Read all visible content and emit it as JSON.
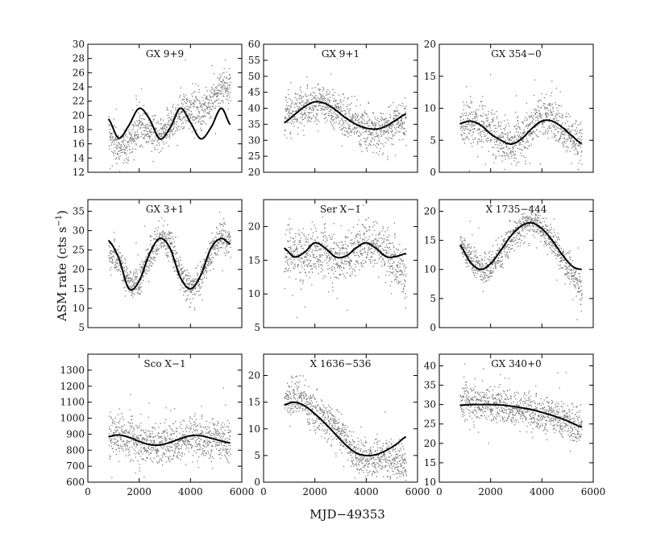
{
  "chart_data": {
    "type": "scatter",
    "layout": "3x3 grid of scatter plots with sinusoidal fit curves",
    "xlabel": "MJD−49353",
    "ylabel": "ASM rate (cts  s",
    "ylabel_superscript": "−1",
    "ylabel_close": ")",
    "xlim": [
      0,
      6000
    ],
    "xticks": [
      "0",
      "2000",
      "4000",
      "6000"
    ],
    "xtick_values": [
      0,
      2000,
      4000,
      6000
    ],
    "data_x_range": [
      800,
      5550
    ],
    "panels": [
      {
        "title": "GX 9+9",
        "ylim": [
          12,
          30
        ],
        "yticks": [
          12,
          14,
          16,
          18,
          20,
          22,
          24,
          26,
          28,
          30
        ],
        "fit_curve": {
          "x": [
            800,
            1200,
            1600,
            2000,
            2400,
            2800,
            3200,
            3600,
            4000,
            4400,
            4800,
            5200,
            5550
          ],
          "y": [
            19.5,
            16.8,
            18.6,
            21.0,
            19.5,
            16.7,
            18.2,
            21.0,
            19.0,
            16.7,
            18.3,
            21.0,
            18.7
          ]
        },
        "scatter_trend": {
          "x": [
            800,
            1200,
            1600,
            2000,
            2400,
            2800,
            3200,
            3600,
            4000,
            4400,
            4800,
            5200,
            5550
          ],
          "y": [
            17.5,
            15.5,
            16.5,
            18.5,
            18.0,
            16.8,
            18.8,
            20.5,
            21.0,
            20.8,
            21.8,
            24.5,
            24.0
          ]
        },
        "scatter_spread": 1.6
      },
      {
        "title": "GX 9+1",
        "ylim": [
          20,
          60
        ],
        "yticks": [
          20,
          25,
          30,
          35,
          40,
          45,
          50,
          55,
          60
        ],
        "fit_curve": {
          "x": [
            800,
            1200,
            1600,
            2000,
            2400,
            2800,
            3200,
            3600,
            4000,
            4400,
            4800,
            5200,
            5550
          ],
          "y": [
            35.5,
            38.0,
            40.5,
            42.0,
            41.5,
            39.5,
            37.0,
            35.0,
            33.8,
            33.5,
            34.5,
            36.5,
            38.2
          ]
        },
        "scatter_trend": {
          "x": [
            800,
            1200,
            1600,
            2000,
            2400,
            2800,
            3200,
            3600,
            4000,
            4400,
            4800,
            5200,
            5550
          ],
          "y": [
            38,
            39,
            41,
            42,
            41,
            39,
            37,
            35,
            33.5,
            33,
            34,
            36,
            37
          ]
        },
        "scatter_spread": 4.0
      },
      {
        "title": "GX 354−0",
        "ylim": [
          0,
          20
        ],
        "yticks": [
          0,
          5,
          10,
          15,
          20
        ],
        "fit_curve": {
          "x": [
            800,
            1200,
            1600,
            2000,
            2400,
            2800,
            3200,
            3600,
            4000,
            4400,
            4800,
            5200,
            5550
          ],
          "y": [
            7.6,
            8.0,
            7.4,
            6.0,
            5.0,
            4.4,
            5.2,
            6.8,
            8.0,
            8.0,
            7.0,
            5.6,
            4.5
          ]
        },
        "scatter_trend": {
          "x": [
            800,
            1200,
            1600,
            2000,
            2400,
            2800,
            3200,
            3600,
            4000,
            4400,
            4800,
            5200,
            5550
          ],
          "y": [
            7.5,
            8.0,
            7.5,
            6.5,
            5.0,
            4.5,
            5.5,
            7.5,
            9.0,
            8.5,
            7.0,
            5.5,
            4.0
          ]
        },
        "scatter_spread": 2.2
      },
      {
        "title": "GX 3+1",
        "ylim": [
          5,
          38
        ],
        "yticks": [
          5,
          10,
          15,
          20,
          25,
          30,
          35
        ],
        "fit_curve": {
          "x": [
            800,
            1200,
            1600,
            2000,
            2400,
            2800,
            3200,
            3600,
            4000,
            4400,
            4800,
            5200,
            5550
          ],
          "y": [
            27.5,
            23.0,
            15.0,
            17.0,
            24.0,
            28.0,
            25.5,
            18.0,
            15.0,
            18.5,
            25.5,
            28.0,
            26.5
          ]
        },
        "scatter_trend": {
          "x": [
            800,
            1200,
            1600,
            2000,
            2400,
            2800,
            3200,
            3600,
            4000,
            4400,
            4800,
            5200,
            5550
          ],
          "y": [
            25,
            23,
            16,
            17,
            24,
            28,
            27,
            19,
            15,
            18,
            25,
            29,
            27
          ]
        },
        "scatter_spread": 2.6
      },
      {
        "title": "Ser X−1",
        "ylim": [
          5,
          24
        ],
        "yticks": [
          5,
          10,
          15,
          20
        ],
        "fit_curve": {
          "x": [
            800,
            1200,
            1600,
            2000,
            2400,
            2800,
            3200,
            3600,
            4000,
            4400,
            4800,
            5200,
            5550
          ],
          "y": [
            16.8,
            15.5,
            16.2,
            17.6,
            16.8,
            15.5,
            15.6,
            16.8,
            17.6,
            16.7,
            15.5,
            15.6,
            16.0
          ]
        },
        "scatter_trend": {
          "x": [
            800,
            1200,
            1600,
            2000,
            2400,
            2800,
            3200,
            3600,
            4000,
            4400,
            4800,
            5200,
            5550
          ],
          "y": [
            16.5,
            16,
            15.5,
            16.5,
            16.5,
            15.5,
            15.5,
            16.5,
            18,
            17.5,
            16,
            15,
            13
          ]
        },
        "scatter_spread": 2.4
      },
      {
        "title": "X 1735−444",
        "ylim": [
          0,
          22
        ],
        "yticks": [
          0,
          5,
          10,
          15,
          20
        ],
        "fit_curve": {
          "x": [
            800,
            1200,
            1600,
            2000,
            2400,
            2800,
            3200,
            3600,
            4000,
            4400,
            4800,
            5200,
            5550
          ],
          "y": [
            14.2,
            11.3,
            10.0,
            11.0,
            13.3,
            15.8,
            17.5,
            18.0,
            17.0,
            15.0,
            12.5,
            10.5,
            10.0
          ]
        },
        "scatter_trend": {
          "x": [
            800,
            1200,
            1600,
            2000,
            2400,
            2800,
            3200,
            3600,
            4000,
            4400,
            4800,
            5200,
            5550
          ],
          "y": [
            14,
            12,
            10,
            10.5,
            13,
            15.5,
            17.5,
            18.5,
            17,
            15,
            12,
            9,
            6
          ]
        },
        "scatter_spread": 1.6
      },
      {
        "title": "Sco X−1",
        "ylim": [
          600,
          1400
        ],
        "yticks": [
          600,
          700,
          800,
          900,
          1000,
          1100,
          1200,
          1300
        ],
        "fit_curve": {
          "x": [
            800,
            1200,
            1600,
            2000,
            2400,
            2800,
            3200,
            3600,
            4000,
            4400,
            4800,
            5200,
            5550
          ],
          "y": [
            885,
            895,
            880,
            855,
            835,
            832,
            848,
            872,
            890,
            890,
            875,
            858,
            845
          ]
        },
        "scatter_trend": {
          "x": [
            800,
            1200,
            1600,
            2000,
            2400,
            2800,
            3200,
            3600,
            4000,
            4400,
            4800,
            5200,
            5550
          ],
          "y": [
            890,
            900,
            880,
            860,
            840,
            835,
            850,
            870,
            890,
            890,
            875,
            860,
            845
          ]
        },
        "scatter_spread": 85
      },
      {
        "title": "X 1636−536",
        "ylim": [
          0,
          24
        ],
        "yticks": [
          0,
          5,
          10,
          15,
          20
        ],
        "fit_curve": {
          "x": [
            800,
            1200,
            1600,
            2000,
            2400,
            2800,
            3200,
            3600,
            4000,
            4400,
            4800,
            5200,
            5550
          ],
          "y": [
            14.5,
            15.0,
            14.3,
            12.8,
            11.0,
            9.0,
            7.0,
            5.5,
            5.0,
            5.2,
            6.0,
            7.2,
            8.5
          ]
        },
        "scatter_trend": {
          "x": [
            800,
            1200,
            1600,
            2000,
            2400,
            2800,
            3200,
            3600,
            4000,
            4400,
            4800,
            5200,
            5550
          ],
          "y": [
            15,
            16.5,
            15,
            13,
            12,
            10.5,
            8,
            5,
            4.5,
            4.5,
            4.5,
            4,
            3.5
          ]
        },
        "scatter_spread": 2.2
      },
      {
        "title": "GX 340+0",
        "ylim": [
          10,
          43
        ],
        "yticks": [
          10,
          15,
          20,
          25,
          30,
          35,
          40
        ],
        "fit_curve": {
          "x": [
            800,
            1200,
            1600,
            2000,
            2400,
            2800,
            3200,
            3600,
            4000,
            4400,
            4800,
            5200,
            5550
          ],
          "y": [
            29.8,
            30.0,
            30.0,
            30.0,
            29.9,
            29.6,
            29.2,
            28.7,
            28.0,
            27.2,
            26.3,
            25.2,
            24.2
          ]
        },
        "scatter_trend": {
          "x": [
            800,
            1200,
            1600,
            2000,
            2400,
            2800,
            3200,
            3600,
            4000,
            4400,
            4800,
            5200,
            5550
          ],
          "y": [
            31,
            31,
            30.5,
            30,
            30,
            29.5,
            29,
            28.5,
            28,
            27,
            26,
            25,
            24
          ]
        },
        "scatter_spread": 3.0
      }
    ]
  }
}
